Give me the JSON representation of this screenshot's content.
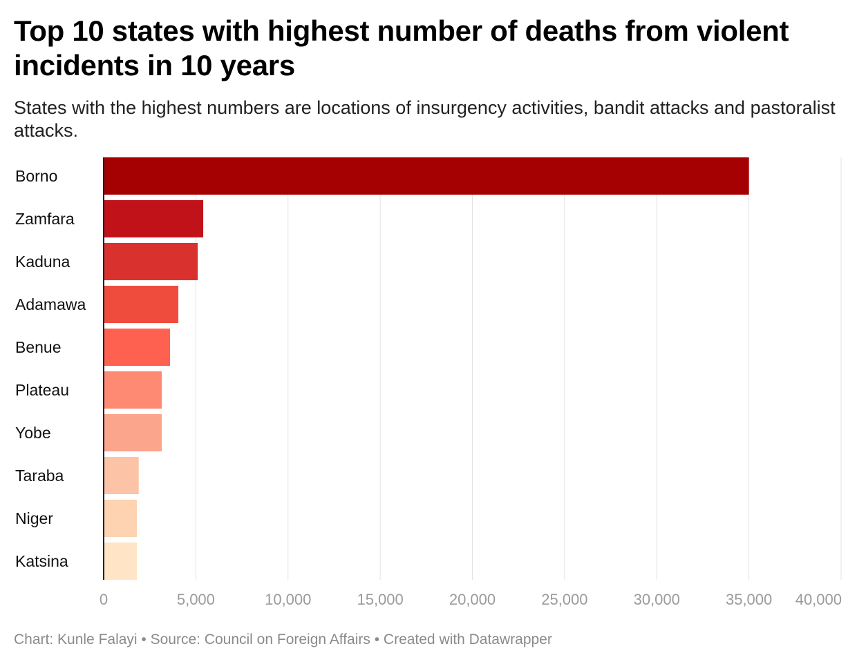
{
  "title": "Top 10 states with highest number of deaths from violent incidents in 10 years",
  "subtitle": "States with the highest numbers are locations of insurgency activities, bandit attacks and pastoralist attacks.",
  "footer": "Chart: Kunle Falayi • Source: Council on Foreign Affairs • Created with Datawrapper",
  "chart_data": {
    "type": "bar",
    "orientation": "horizontal",
    "categories": [
      "Borno",
      "Zamfara",
      "Kaduna",
      "Adamawa",
      "Benue",
      "Plateau",
      "Yobe",
      "Taraba",
      "Niger",
      "Katsina"
    ],
    "values": [
      35000,
      5400,
      5100,
      4050,
      3600,
      3150,
      3150,
      1900,
      1800,
      1800
    ],
    "colors": [
      "#a50002",
      "#c1121a",
      "#d9322e",
      "#ef4c3e",
      "#ff6150",
      "#ff8a74",
      "#fca58d",
      "#fdc3a6",
      "#fdd3b2",
      "#ffe5c6"
    ],
    "xlim": [
      0,
      40000
    ],
    "xticks": [
      0,
      5000,
      10000,
      15000,
      20000,
      25000,
      30000,
      35000,
      40000
    ],
    "xtick_labels": [
      "0",
      "5,000",
      "10,000",
      "15,000",
      "20,000",
      "25,000",
      "30,000",
      "35,000",
      "40,000"
    ],
    "grid": true,
    "legend": "none"
  }
}
